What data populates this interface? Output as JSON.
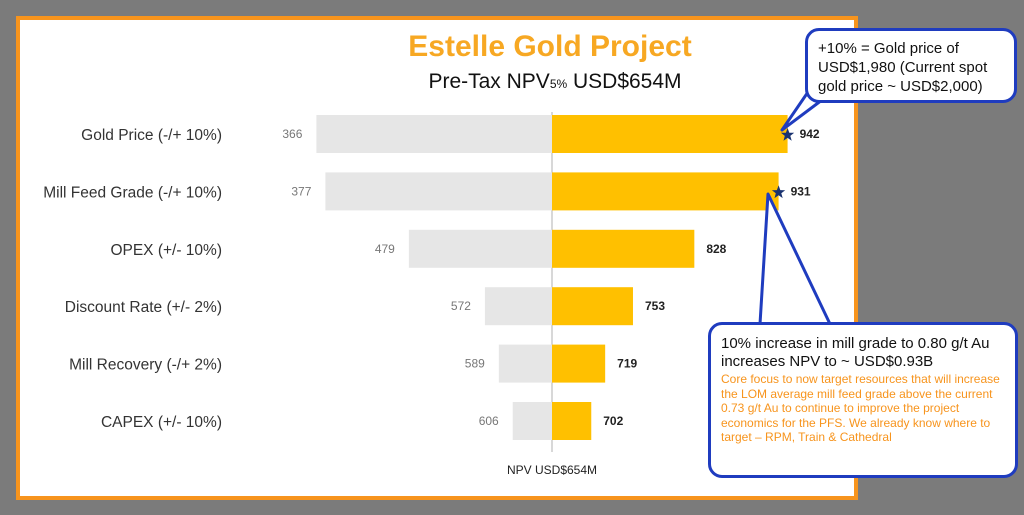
{
  "slide": {
    "title": "Estelle Gold Project",
    "subtitle_main": "Pre-Tax NPV",
    "subtitle_sub": "5%",
    "subtitle_value": " USD$654M"
  },
  "colors": {
    "border": "#f7941d",
    "title": "#f7a823",
    "bar_low": "#e6e6e6",
    "bar_high": "#ffc000",
    "callout_border": "#1f3cbf",
    "star": "#1a3370"
  },
  "chart_data": {
    "type": "bar",
    "orientation": "horizontal",
    "style": "tornado",
    "base_value": 654,
    "base_label": "NPV USD$654M",
    "categories": [
      "Gold Price (-/+ 10%)",
      "Mill Feed Grade (-/+ 10%)",
      "OPEX (+/- 10%)",
      "Discount Rate (+/- 2%)",
      "Mill Recovery (-/+ 2%)",
      "CAPEX (+/- 10%)"
    ],
    "series": [
      {
        "values": [
          366,
          377,
          479,
          572,
          589,
          606
        ]
      },
      {
        "values": [
          942,
          931,
          828,
          753,
          719,
          702
        ]
      }
    ],
    "markers": [
      "star",
      "star",
      "",
      "",
      "",
      ""
    ],
    "xlim": [
      350,
      960
    ]
  },
  "callouts": {
    "gold_price": "+10% = Gold price of USD$1,980 (Current spot gold price ~ USD$2,000)",
    "mill_grade_head": "10% increase in mill grade to 0.80 g/t Au increases NPV to ~ USD$0.93B",
    "mill_grade_body": "Core focus to now target resources that will increase the LOM average mill feed grade above the current 0.73 g/t Au to continue to improve the project economics for the PFS. We already know where to target – RPM, Train & Cathedral"
  }
}
